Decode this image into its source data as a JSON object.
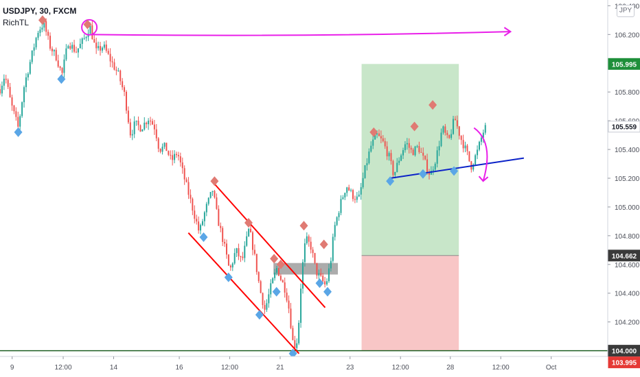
{
  "symbol": "USDJPY, 30, FXCM",
  "indicator": "RichTL",
  "currency_badge": "JPY",
  "colors": {
    "bull": "#26a69a",
    "bear": "#ef5350",
    "up_marker": "#e07a73",
    "down_marker": "#5aa6e6",
    "magenta": "#e91ee9",
    "channel": "#ff0000",
    "trendline_blue": "#0b22c8",
    "support": "#1b5e20",
    "profit_zone": "#c8e6c9",
    "loss_zone": "#f8c6c6",
    "tag_green": "#1e8f3a",
    "tag_gray": "#3a3a3a",
    "tag_red": "#e53935"
  },
  "chart_data": {
    "type": "candlestick",
    "ylim": [
      103.96,
      106.44
    ],
    "xlim": [
      0,
      1000
    ],
    "y_ticks": [
      "106.400",
      "106.200",
      "105.800",
      "105.600",
      "105.400",
      "105.200",
      "105.000",
      "104.800",
      "104.600",
      "104.400",
      "104.200"
    ],
    "y_tick_values": [
      106.4,
      106.2,
      105.8,
      105.6,
      105.4,
      105.2,
      105.0,
      104.8,
      104.6,
      104.4,
      104.2
    ],
    "x_ticks": [
      {
        "label": "9",
        "x": 20
      },
      {
        "label": "12:00",
        "x": 104
      },
      {
        "label": "14",
        "x": 187
      },
      {
        "label": "16",
        "x": 295
      },
      {
        "label": "12:00",
        "x": 378
      },
      {
        "label": "21",
        "x": 461
      },
      {
        "label": "23",
        "x": 576
      },
      {
        "label": "12:00",
        "x": 659
      },
      {
        "label": "28",
        "x": 741
      },
      {
        "label": "12:00",
        "x": 824
      },
      {
        "label": "Oct",
        "x": 907
      }
    ],
    "price_tags": [
      {
        "text": "105.995",
        "value": 105.995,
        "kind": "green"
      },
      {
        "text": "105.559",
        "value": 105.559,
        "kind": "plain"
      },
      {
        "text": "104.662",
        "value": 104.662,
        "kind": "gray"
      },
      {
        "text": "104.000",
        "value": 104.0,
        "kind": "gray"
      },
      {
        "text": "103.995",
        "value": 103.995,
        "kind": "red"
      }
    ],
    "path": [
      [
        0,
        105.82
      ],
      [
        8,
        105.92
      ],
      [
        18,
        105.72
      ],
      [
        30,
        105.55
      ],
      [
        40,
        105.85
      ],
      [
        52,
        106.05
      ],
      [
        62,
        106.22
      ],
      [
        72,
        106.28
      ],
      [
        82,
        106.12
      ],
      [
        92,
        106.05
      ],
      [
        102,
        105.92
      ],
      [
        112,
        106.15
      ],
      [
        125,
        106.08
      ],
      [
        140,
        106.18
      ],
      [
        148,
        106.26
      ],
      [
        158,
        106.08
      ],
      [
        170,
        106.12
      ],
      [
        182,
        106.02
      ],
      [
        195,
        105.92
      ],
      [
        205,
        105.78
      ],
      [
        215,
        105.5
      ],
      [
        222,
        105.58
      ],
      [
        232,
        105.55
      ],
      [
        245,
        105.62
      ],
      [
        255,
        105.55
      ],
      [
        262,
        105.4
      ],
      [
        272,
        105.42
      ],
      [
        282,
        105.32
      ],
      [
        292,
        105.38
      ],
      [
        302,
        105.22
      ],
      [
        315,
        105.02
      ],
      [
        328,
        104.82
      ],
      [
        338,
        104.98
      ],
      [
        350,
        105.12
      ],
      [
        358,
        104.92
      ],
      [
        368,
        104.75
      ],
      [
        378,
        104.55
      ],
      [
        388,
        104.7
      ],
      [
        398,
        104.62
      ],
      [
        410,
        104.85
      ],
      [
        418,
        104.68
      ],
      [
        428,
        104.42
      ],
      [
        436,
        104.28
      ],
      [
        446,
        104.45
      ],
      [
        456,
        104.58
      ],
      [
        462,
        104.5
      ],
      [
        470,
        104.42
      ],
      [
        476,
        104.28
      ],
      [
        483,
        104.02
      ],
      [
        490,
        104.08
      ],
      [
        496,
        104.52
      ],
      [
        503,
        104.78
      ],
      [
        512,
        104.72
      ],
      [
        520,
        104.55
      ],
      [
        528,
        104.5
      ],
      [
        536,
        104.45
      ],
      [
        544,
        104.62
      ],
      [
        550,
        104.85
      ],
      [
        560,
        105.02
      ],
      [
        570,
        105.15
      ],
      [
        580,
        105.08
      ],
      [
        590,
        105.05
      ],
      [
        600,
        105.25
      ],
      [
        610,
        105.42
      ],
      [
        620,
        105.5
      ],
      [
        630,
        105.45
      ],
      [
        640,
        105.35
      ],
      [
        648,
        105.22
      ],
      [
        658,
        105.35
      ],
      [
        668,
        105.45
      ],
      [
        678,
        105.38
      ],
      [
        688,
        105.42
      ],
      [
        698,
        105.32
      ],
      [
        708,
        105.22
      ],
      [
        718,
        105.35
      ],
      [
        728,
        105.55
      ],
      [
        738,
        105.45
      ],
      [
        748,
        105.62
      ],
      [
        758,
        105.48
      ],
      [
        768,
        105.38
      ],
      [
        775,
        105.28
      ],
      [
        785,
        105.38
      ],
      [
        795,
        105.52
      ],
      [
        800,
        105.56
      ]
    ],
    "high_markers": [
      [
        70,
        106.28
      ],
      [
        144,
        106.25
      ],
      [
        353,
        105.16
      ],
      [
        409,
        104.87
      ],
      [
        451,
        104.62
      ],
      [
        462,
        104.58
      ],
      [
        500,
        104.85
      ],
      [
        533,
        104.72
      ],
      [
        615,
        105.5
      ],
      [
        682,
        105.54
      ],
      [
        712,
        105.69
      ]
    ],
    "low_markers": [
      [
        30,
        105.54
      ],
      [
        101,
        105.91
      ],
      [
        335,
        104.81
      ],
      [
        376,
        104.53
      ],
      [
        427,
        104.27
      ],
      [
        455,
        104.43
      ],
      [
        482,
        104.0
      ],
      [
        526,
        104.49
      ],
      [
        539,
        104.43
      ],
      [
        642,
        105.2
      ],
      [
        696,
        105.25
      ],
      [
        747,
        105.27
      ]
    ],
    "profit_zone": {
      "x0": 595,
      "x1": 755,
      "top": 105.995,
      "bottom": 104.662
    },
    "loss_zone": {
      "x0": 595,
      "x1": 755,
      "top": 104.662,
      "bottom": 104.0
    },
    "resistance_box": {
      "x0": 450,
      "x1": 556,
      "top": 104.61,
      "bottom": 104.53
    },
    "support_level": 104.0,
    "channel_upper": [
      [
        353,
        105.16
      ],
      [
        535,
        104.3
      ]
    ],
    "channel_lower": [
      [
        310,
        104.82
      ],
      [
        492,
        103.98
      ]
    ],
    "magenta_line": [
      [
        150,
        106.2
      ],
      [
        840,
        106.22
      ]
    ],
    "magenta_circle": [
      147,
      106.25
    ],
    "blue_trendline": [
      [
        642,
        105.2
      ],
      [
        862,
        105.34
      ]
    ],
    "curved_arrow": [
      [
        780,
        105.55
      ],
      [
        800,
        105.4
      ],
      [
        795,
        105.18
      ]
    ]
  }
}
